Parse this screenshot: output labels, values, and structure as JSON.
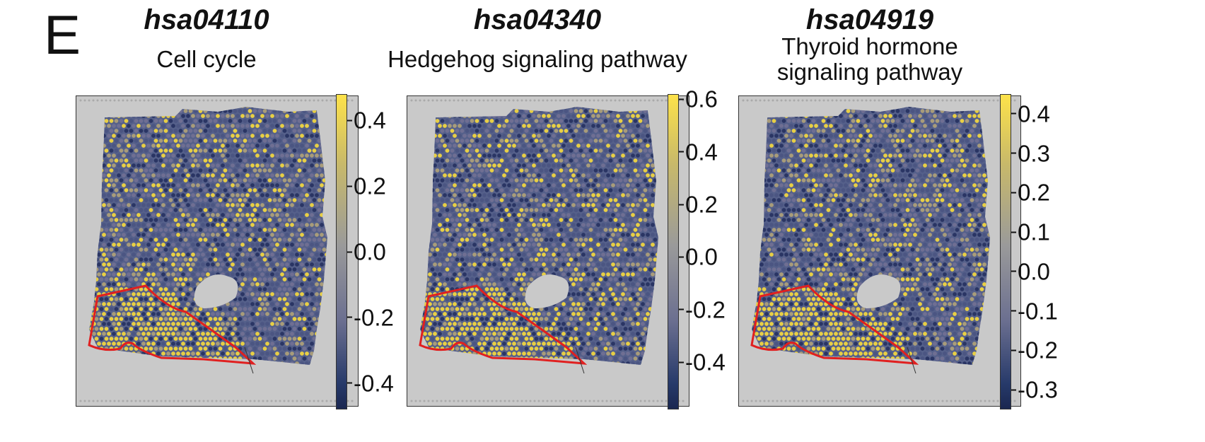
{
  "panel_letter": "E",
  "chart_data": [
    {
      "type": "heatmap",
      "id": "hsa04110",
      "title": "Cell cycle",
      "colorbar_ticks": [
        "0.4",
        "0.2",
        "0.0",
        "-0.2",
        "-0.4"
      ],
      "colorbar_range": [
        -0.48,
        0.48
      ],
      "colormap": [
        "#1a2750",
        "#9a9a9a",
        "#fde24a"
      ]
    },
    {
      "type": "heatmap",
      "id": "hsa04340",
      "title": "Hedgehog signaling pathway",
      "colorbar_ticks": [
        "0.6",
        "0.4",
        "0.2",
        "0.0",
        "-0.2",
        "-0.4"
      ],
      "colorbar_range": [
        -0.58,
        0.62
      ],
      "colormap": [
        "#1a2750",
        "#9a9a9a",
        "#fde24a"
      ]
    },
    {
      "type": "heatmap",
      "id": "hsa04919",
      "title": "Thyroid hormone signaling pathway",
      "title_lines": [
        "Thyroid hormone",
        "signaling pathway"
      ],
      "colorbar_ticks": [
        "0.4",
        "0.3",
        "0.2",
        "0.1",
        "0.0",
        "-0.1",
        "-0.2",
        "-0.3"
      ],
      "colorbar_range": [
        -0.35,
        0.45
      ],
      "colormap": [
        "#1a2750",
        "#9a9a9a",
        "#fde24a"
      ]
    }
  ],
  "colors": {
    "region_outline": "#e02020",
    "background": "#c9c9c9"
  }
}
